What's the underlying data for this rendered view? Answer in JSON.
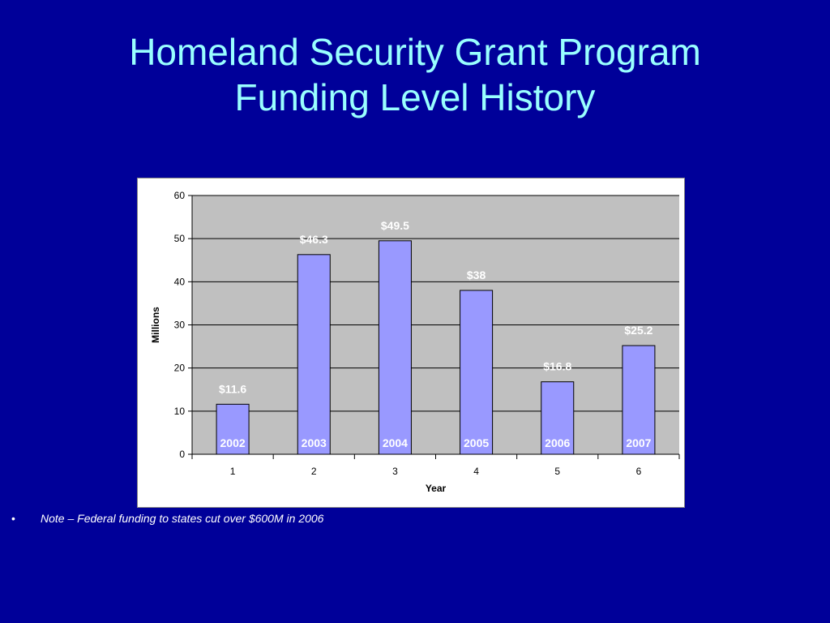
{
  "slide": {
    "title_line1": "Homeland Security Grant Program",
    "title_line2": "Funding Level History",
    "note_bullet": "•",
    "note_text": "Note – Federal funding to states cut over $600M in 2006"
  },
  "colors": {
    "background": "#000099",
    "title": "#99ffff",
    "plot_area": "#c0c0c0",
    "bar_fill": "#9999ff",
    "bar_stroke": "#000000",
    "label_text": "#ffffff"
  },
  "chart_data": {
    "type": "bar",
    "categories": [
      "1",
      "2",
      "3",
      "4",
      "5",
      "6"
    ],
    "values": [
      11.6,
      46.3,
      49.5,
      38,
      16.8,
      25.2
    ],
    "value_labels": [
      "$11.6",
      "$46.3",
      "$49.5",
      "$38",
      "$16.8",
      "$25.2"
    ],
    "year_labels": [
      "2002",
      "2003",
      "2004",
      "2005",
      "2006",
      "2007"
    ],
    "xlabel": "Year",
    "ylabel": "Millions",
    "ylim": [
      0,
      60
    ],
    "yticks": [
      0,
      10,
      20,
      30,
      40,
      50,
      60
    ],
    "grid": true,
    "legend": "none"
  }
}
